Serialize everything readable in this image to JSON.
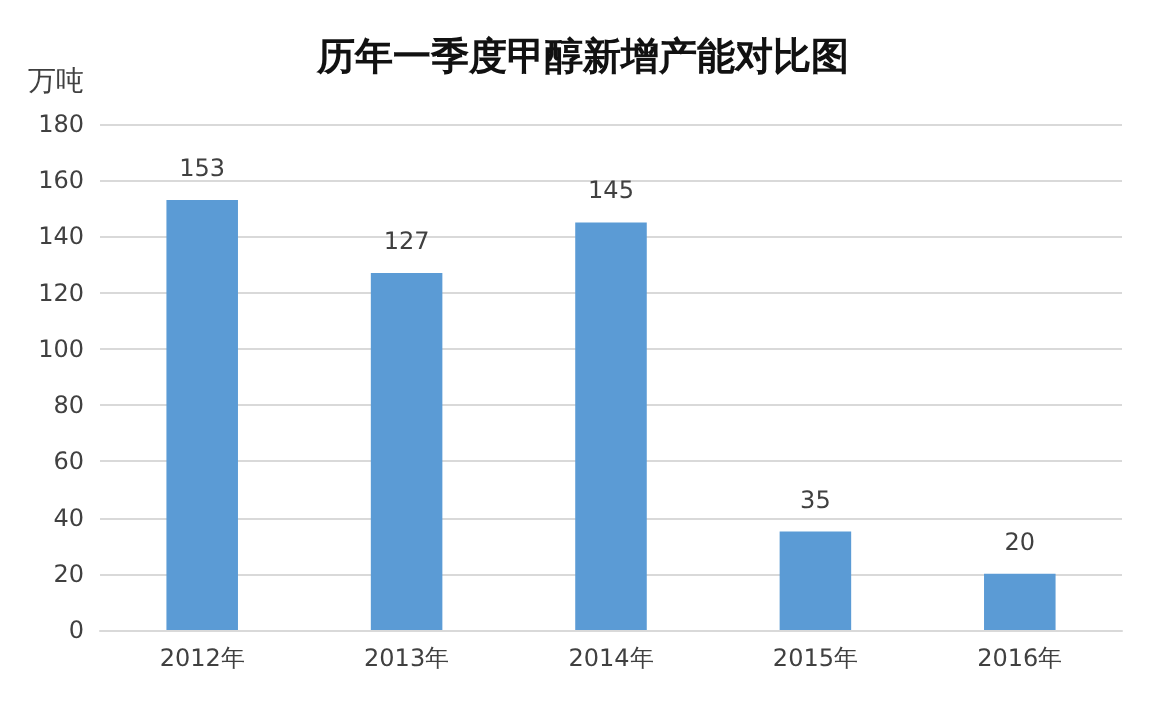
{
  "chart_data": {
    "type": "bar",
    "title": "历年一季度甲醇新增产能对比图",
    "ylabel": "万吨",
    "categories": [
      "2012年",
      "2013年",
      "2014年",
      "2015年",
      "2016年"
    ],
    "values": [
      153,
      127,
      145,
      35,
      20
    ],
    "color": "#5b9bd5",
    "ylim": [
      0,
      180
    ],
    "yticks": [
      0,
      20,
      40,
      60,
      80,
      100,
      120,
      140,
      160,
      180
    ],
    "grid": "y",
    "data_labels": true
  }
}
